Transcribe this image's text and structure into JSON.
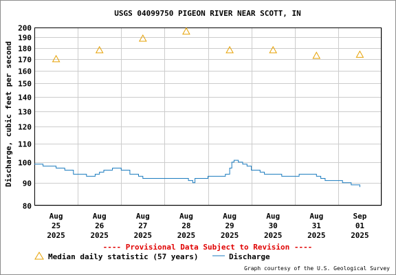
{
  "colors": {
    "median": "#e6a000",
    "discharge": "#1a7bbf",
    "grid": "#cccccc",
    "provisional": "#e00000"
  },
  "chart_data": {
    "type": "line",
    "title": "USGS 04099750 PIGEON RIVER NEAR SCOTT, IN",
    "ylabel": "Discharge, cubic feet per second",
    "yscale": "log",
    "ylim": [
      80,
      200
    ],
    "yticks": [
      80,
      90,
      100,
      110,
      120,
      130,
      140,
      150,
      160,
      170,
      180,
      190,
      200
    ],
    "xlim": [
      -0.5,
      7.5
    ],
    "xticks": [
      {
        "x": 0,
        "lines": [
          "Aug",
          "25",
          "2025"
        ]
      },
      {
        "x": 1,
        "lines": [
          "Aug",
          "26",
          "2025"
        ]
      },
      {
        "x": 2,
        "lines": [
          "Aug",
          "27",
          "2025"
        ]
      },
      {
        "x": 3,
        "lines": [
          "Aug",
          "28",
          "2025"
        ]
      },
      {
        "x": 4,
        "lines": [
          "Aug",
          "29",
          "2025"
        ]
      },
      {
        "x": 5,
        "lines": [
          "Aug",
          "30",
          "2025"
        ]
      },
      {
        "x": 6,
        "lines": [
          "Aug",
          "31",
          "2025"
        ]
      },
      {
        "x": 7,
        "lines": [
          "Sep",
          "01",
          "2025"
        ]
      }
    ],
    "series": [
      {
        "name": "Median daily statistic (57 years)",
        "style": "triangle-markers",
        "x": [
          0,
          1,
          2,
          3,
          4,
          5,
          6,
          7
        ],
        "values": [
          170,
          178,
          189,
          196,
          178,
          178,
          173,
          174
        ]
      },
      {
        "name": "Discharge",
        "style": "line",
        "x": [
          -0.5,
          -0.3,
          -0.2,
          0.0,
          0.2,
          0.4,
          0.5,
          0.7,
          0.9,
          1.0,
          1.1,
          1.3,
          1.5,
          1.7,
          1.9,
          2.0,
          2.5,
          3.0,
          3.05,
          3.15,
          3.2,
          3.3,
          3.5,
          3.9,
          4.0,
          4.05,
          4.1,
          4.2,
          4.3,
          4.4,
          4.5,
          4.7,
          4.8,
          4.9,
          5.0,
          5.2,
          5.4,
          5.6,
          5.8,
          6.0,
          6.1,
          6.2,
          6.4,
          6.6,
          6.8,
          6.9,
          7.0
        ],
        "values": [
          99,
          98,
          98,
          97,
          96,
          94,
          94,
          93,
          94,
          95,
          96,
          97,
          96,
          94,
          93,
          92,
          92,
          92,
          91,
          90,
          92,
          92,
          93,
          94,
          97,
          100,
          101,
          100,
          99,
          98,
          96,
          95,
          94,
          94,
          94,
          93,
          93,
          94,
          94,
          93,
          92,
          91,
          91,
          90,
          89,
          89,
          88
        ]
      }
    ],
    "provisional_note": "---- Provisional Data Subject to Revision ----",
    "credit": "Graph courtesy of the U.S. Geological Survey"
  }
}
